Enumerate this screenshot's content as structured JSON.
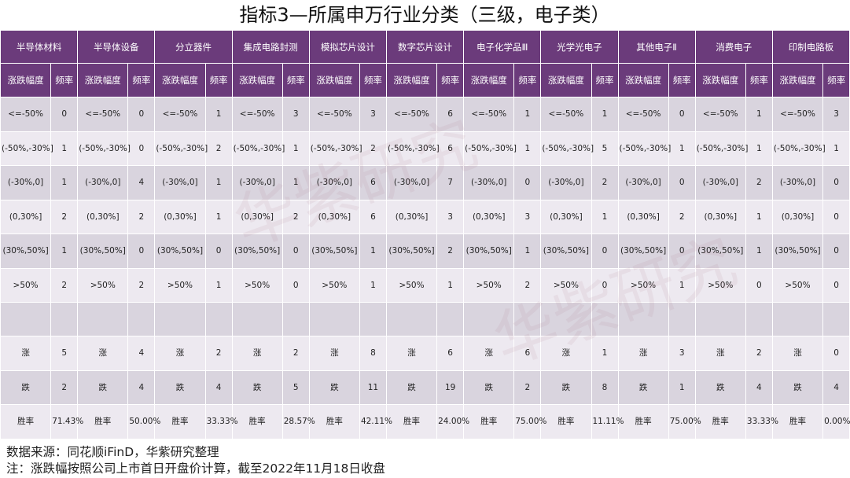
{
  "title": "指标3—所属申万行业分类（三级，电子类）",
  "categories": [
    "半导体材料",
    "半导体设备",
    "分立器件",
    "集成电路封测",
    "模拟芯片设计",
    "数字芯片设计",
    "电子化学品Ⅲ",
    "光学光电子",
    "其他电子Ⅱ",
    "消费电子",
    "印制电路板"
  ],
  "sub_headers": {
    "range": "涨跌幅度",
    "freq": "频率"
  },
  "range_labels": [
    "<=-50%",
    "(-50%,-30%]",
    "(-30%,0]",
    "(0,30%]",
    "(30%,50%]",
    ">50%"
  ],
  "range_rows": [
    [
      "0",
      "0",
      "1",
      "3",
      "3",
      "6",
      "1",
      "1",
      "0",
      "1",
      "3"
    ],
    [
      "1",
      "0",
      "2",
      "1",
      "2",
      "6",
      "1",
      "5",
      "1",
      "1",
      "1"
    ],
    [
      "1",
      "4",
      "1",
      "1",
      "6",
      "7",
      "0",
      "2",
      "0",
      "2",
      "0"
    ],
    [
      "2",
      "2",
      "1",
      "2",
      "6",
      "3",
      "3",
      "1",
      "2",
      "1",
      "0"
    ],
    [
      "1",
      "0",
      "0",
      "0",
      "1",
      "2",
      "1",
      "0",
      "0",
      "1",
      "0"
    ],
    [
      "2",
      "2",
      "1",
      "0",
      "1",
      "1",
      "2",
      "0",
      "1",
      "0",
      "0"
    ]
  ],
  "summary": [
    {
      "label": "涨",
      "values": [
        "5",
        "4",
        "2",
        "2",
        "8",
        "6",
        "6",
        "1",
        "3",
        "2",
        "0"
      ]
    },
    {
      "label": "跌",
      "values": [
        "2",
        "4",
        "4",
        "5",
        "11",
        "19",
        "2",
        "8",
        "1",
        "4",
        "4"
      ]
    },
    {
      "label": "胜率",
      "values": [
        "71.43%",
        "50.00%",
        "33.33%",
        "28.57%",
        "42.11%",
        "24.00%",
        "75.00%",
        "11.11%",
        "75.00%",
        "33.33%",
        "0.00%"
      ]
    }
  ],
  "footer": {
    "source": "数据来源：同花顺iFinD，华紫研究整理",
    "note": "注：涨跌幅按照公司上市首日开盘价计算，截至2022年11月18日收盘"
  },
  "watermark": "华紫研究",
  "colors": {
    "header": "#6b3b7b",
    "row_dark": "#d9d4de",
    "row_light": "#ede9f0"
  }
}
